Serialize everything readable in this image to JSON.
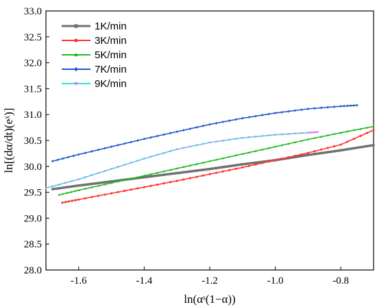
{
  "chart_data": {
    "type": "line",
    "xlabel": "ln(αˢ(1−α))",
    "ylabel": "ln[(dα/dt)(eˣ)]",
    "xlim": [
      -1.7,
      -0.7
    ],
    "ylim": [
      28.0,
      33.0
    ],
    "x_ticks": [
      "-1.6",
      "-1.4",
      "-1.2",
      "-1.0",
      "-0.8"
    ],
    "x_tick_values": [
      -1.6,
      -1.4,
      -1.2,
      -1.0,
      -0.8
    ],
    "y_ticks": [
      "28.0",
      "28.5",
      "29.0",
      "29.5",
      "30.0",
      "30.5",
      "31.0",
      "31.5",
      "32.0",
      "32.5",
      "33.0"
    ],
    "y_tick_values": [
      28.0,
      28.5,
      29.0,
      29.5,
      30.0,
      30.5,
      31.0,
      31.5,
      32.0,
      32.5,
      33.0
    ],
    "legend_position": "top-left",
    "grid": false,
    "series": [
      {
        "name": "1K/min",
        "color": "#707070",
        "marker": "square",
        "x": [
          -1.68,
          -1.6,
          -1.5,
          -1.4,
          -1.3,
          -1.2,
          -1.1,
          -1.0,
          -0.9,
          -0.8,
          -0.7
        ],
        "y": [
          29.56,
          29.63,
          29.71,
          29.79,
          29.87,
          29.95,
          30.04,
          30.12,
          30.22,
          30.31,
          30.41
        ]
      },
      {
        "name": "3K/min",
        "color": "#ff3333",
        "marker": "circle",
        "x": [
          -1.65,
          -1.6,
          -1.5,
          -1.4,
          -1.3,
          -1.2,
          -1.1,
          -1.0,
          -0.9,
          -0.8,
          -0.7
        ],
        "y": [
          29.3,
          29.36,
          29.48,
          29.6,
          29.72,
          29.85,
          29.98,
          30.12,
          30.26,
          30.42,
          30.7
        ]
      },
      {
        "name": "5K/min",
        "color": "#22bb22",
        "marker": "triangle",
        "x": [
          -1.66,
          -1.6,
          -1.5,
          -1.4,
          -1.3,
          -1.2,
          -1.1,
          -1.0,
          -0.9,
          -0.8,
          -0.7
        ],
        "y": [
          29.45,
          29.54,
          29.68,
          29.82,
          29.96,
          30.1,
          30.24,
          30.38,
          30.52,
          30.65,
          30.77
        ]
      },
      {
        "name": "7K/min",
        "color": "#2255cc",
        "marker": "diamond",
        "x": [
          -1.68,
          -1.6,
          -1.5,
          -1.4,
          -1.3,
          -1.2,
          -1.1,
          -1.0,
          -0.9,
          -0.8,
          -0.75
        ],
        "y": [
          30.1,
          30.23,
          30.38,
          30.53,
          30.67,
          30.81,
          30.93,
          31.03,
          31.11,
          31.16,
          31.18
        ]
      },
      {
        "name": "9K/min",
        "color": "#ff66ff",
        "line_color": "#33dddd",
        "marker": "triangle-down",
        "x": [
          -1.7,
          -1.6,
          -1.5,
          -1.4,
          -1.3,
          -1.2,
          -1.1,
          -1.0,
          -0.9,
          -0.87
        ],
        "y": [
          29.58,
          29.75,
          29.95,
          30.15,
          30.33,
          30.46,
          30.55,
          30.61,
          30.65,
          30.66
        ]
      }
    ]
  }
}
